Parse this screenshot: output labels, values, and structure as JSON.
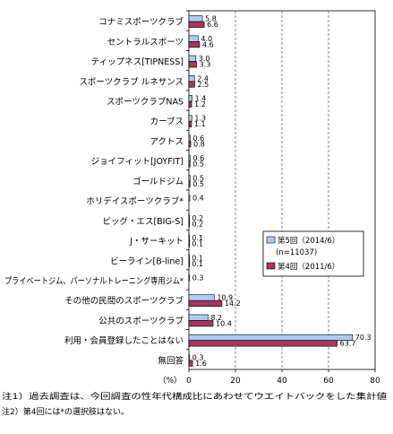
{
  "chart_data": {
    "type": "bar",
    "orientation": "horizontal",
    "categories": [
      "コナミスポーツクラブ",
      "セントラルスポーツ",
      "ティップネス[TIPNESS]",
      "スポーツクラブ ルネサンス",
      "スポーツクラブNAS",
      "カーブス",
      "アクトス",
      "ジョイフィット[JOYFIT]",
      "ゴールドジム",
      "ホリデイスポーツクラブ*",
      "ビッグ・エス[BIG-S]",
      "J・サーキット",
      "ビーライン[B-line]",
      "プライベートジム、パーソナルトレーニング専用ジム*",
      "その他の民間のスポーツクラブ",
      "公共のスポーツクラブ",
      "利用・会員登録したことはない",
      "無回答"
    ],
    "series": [
      {
        "name": "第5回（2014/6）",
        "color": "#a9cdf2",
        "values": [
          5.8,
          4.0,
          3.0,
          2.4,
          1.4,
          1.3,
          0.6,
          0.6,
          0.5,
          0.4,
          0.2,
          0.1,
          0.1,
          0.3,
          10.9,
          8.2,
          70.3,
          0.3
        ]
      },
      {
        "name": "第4回（2011/6）",
        "color": "#a8335f",
        "values": [
          6.6,
          4.6,
          3.3,
          2.5,
          1.2,
          1.1,
          0.8,
          0.5,
          0.5,
          null,
          0.2,
          0.1,
          0.1,
          null,
          14.2,
          10.4,
          63.7,
          1.6
        ]
      }
    ],
    "value_labels": {
      "第5回（2014/6）": [
        "5.8",
        "4.0",
        "3.0",
        "2.4",
        "1.4",
        "1.3",
        "0.6",
        "0.6",
        "0.5",
        "0.4",
        "0.2",
        "0.1",
        "0.1",
        "0.3",
        "10.9",
        "8.2",
        "70.3",
        "0.3"
      ],
      "第4回（2011/6）": [
        "6.6",
        "4.6",
        "3.3",
        "2.5",
        "1.2",
        "1.1",
        "0.8",
        "0.5",
        "0.5",
        "",
        "0.2",
        "0.1",
        "0.1",
        "",
        "14.2",
        "10.4",
        "63.7",
        "1.6"
      ]
    },
    "xlim": [
      0,
      80
    ],
    "xticks": [
      "0",
      "20",
      "40",
      "60",
      "80"
    ],
    "xunit": "（%）",
    "legend_note": "(n=11037)",
    "legend_position": "right",
    "grid": "vertical dashed",
    "notes": [
      "注1）過去調査は、今回調査の性年代構成比にあわせてウエイトバックをした集計値",
      "注2）第4回には*の選択肢はない。"
    ]
  }
}
